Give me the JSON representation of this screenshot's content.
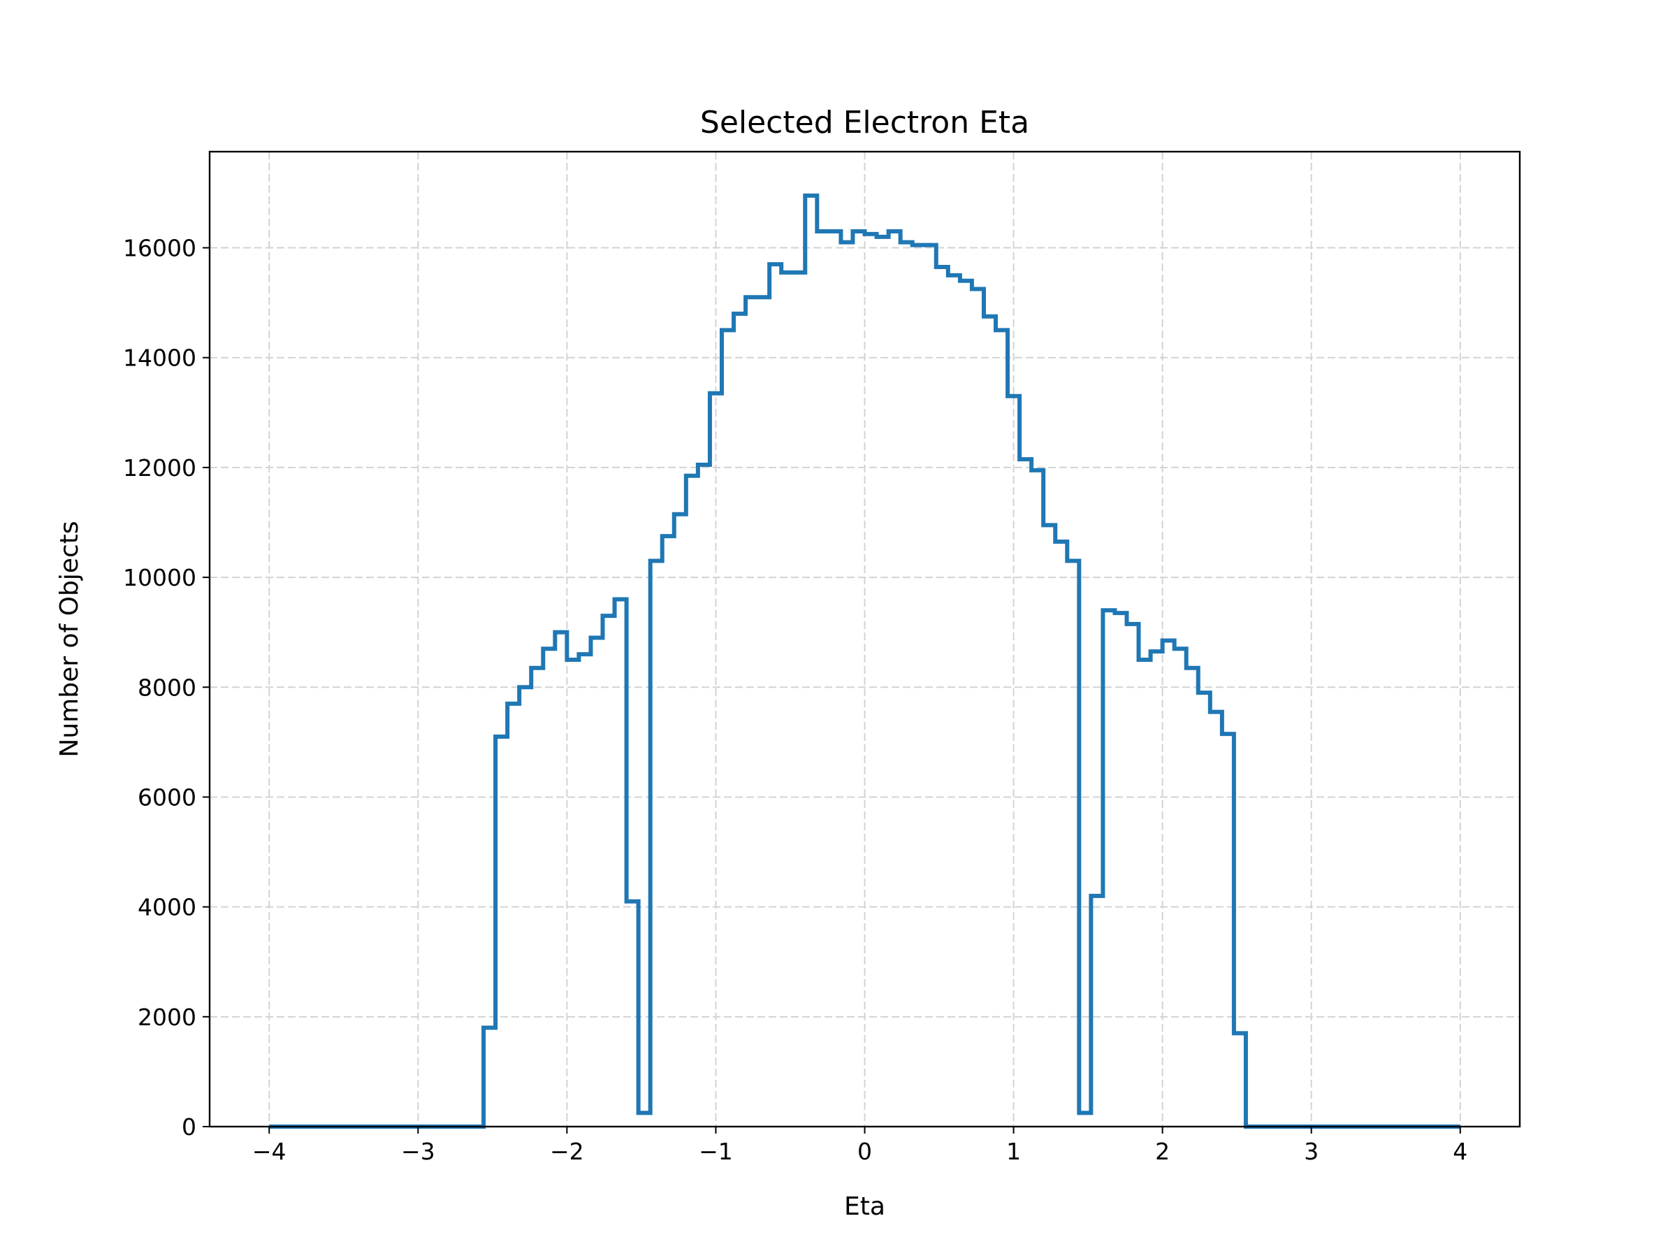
{
  "colors": {
    "series": "#1f77b4",
    "background": "#ffffff",
    "grid": "#d3d3d3"
  },
  "chart_data": {
    "type": "step",
    "title": "Selected Electron Eta",
    "xlabel": "Eta",
    "ylabel": "Number of Objects",
    "xlim": [
      -4.4,
      4.4
    ],
    "ylim": [
      0,
      17750
    ],
    "grid": true,
    "x_ticks": [
      -4,
      -3,
      -2,
      -1,
      0,
      1,
      2,
      3,
      4
    ],
    "x_tick_labels": [
      "−4",
      "−3",
      "−2",
      "−1",
      "0",
      "1",
      "2",
      "3",
      "4"
    ],
    "y_ticks": [
      0,
      2000,
      4000,
      6000,
      8000,
      10000,
      12000,
      14000,
      16000
    ],
    "y_tick_labels": [
      "0",
      "2000",
      "4000",
      "6000",
      "8000",
      "10000",
      "12000",
      "14000",
      "16000"
    ],
    "bin_edges": [
      -4.0,
      -3.92,
      -3.84,
      -3.76,
      -3.68,
      -3.6,
      -3.52,
      -3.44,
      -3.36,
      -3.28,
      -3.2,
      -3.12,
      -3.04,
      -2.96,
      -2.88,
      -2.8,
      -2.72,
      -2.64,
      -2.56,
      -2.48,
      -2.4,
      -2.32,
      -2.24,
      -2.16,
      -2.08,
      -2.0,
      -1.92,
      -1.84,
      -1.76,
      -1.68,
      -1.6,
      -1.52,
      -1.44,
      -1.36,
      -1.28,
      -1.2,
      -1.12,
      -1.04,
      -0.96,
      -0.88,
      -0.8,
      -0.72,
      -0.64,
      -0.56,
      -0.48,
      -0.4,
      -0.32,
      -0.24,
      -0.16,
      -0.08,
      0.0,
      0.08,
      0.16,
      0.24,
      0.32,
      0.4,
      0.48,
      0.56,
      0.64,
      0.72,
      0.8,
      0.88,
      0.96,
      1.04,
      1.12,
      1.2,
      1.28,
      1.36,
      1.44,
      1.52,
      1.6,
      1.68,
      1.76,
      1.84,
      1.92,
      2.0,
      2.08,
      2.16,
      2.24,
      2.32,
      2.4,
      2.48,
      2.56,
      2.64,
      2.72,
      2.8,
      2.88,
      2.96,
      3.04,
      3.12,
      3.2,
      3.28,
      3.36,
      3.44,
      3.52,
      3.6,
      3.68,
      3.76,
      3.84,
      3.92,
      4.0
    ],
    "counts": [
      0,
      0,
      0,
      0,
      0,
      0,
      0,
      0,
      0,
      0,
      0,
      0,
      0,
      0,
      0,
      0,
      0,
      0,
      1800,
      7100,
      7700,
      8000,
      8350,
      8700,
      9000,
      8500,
      8600,
      8900,
      9300,
      9600,
      4100,
      250,
      10300,
      10750,
      11150,
      11850,
      12050,
      13350,
      14500,
      14800,
      15100,
      15100,
      15700,
      15550,
      15550,
      16950,
      16300,
      16300,
      16100,
      16300,
      16250,
      16200,
      16300,
      16100,
      16050,
      16050,
      15650,
      15500,
      15400,
      15250,
      14750,
      14500,
      13300,
      12150,
      11950,
      10950,
      10650,
      10300,
      250,
      4200,
      9400,
      9350,
      9150,
      8500,
      8650,
      8850,
      8700,
      8350,
      7900,
      7550,
      7150,
      1700,
      0,
      0,
      0,
      0,
      0,
      0,
      0,
      0,
      0,
      0,
      0,
      0,
      0,
      0,
      0,
      0,
      0,
      0
    ]
  }
}
